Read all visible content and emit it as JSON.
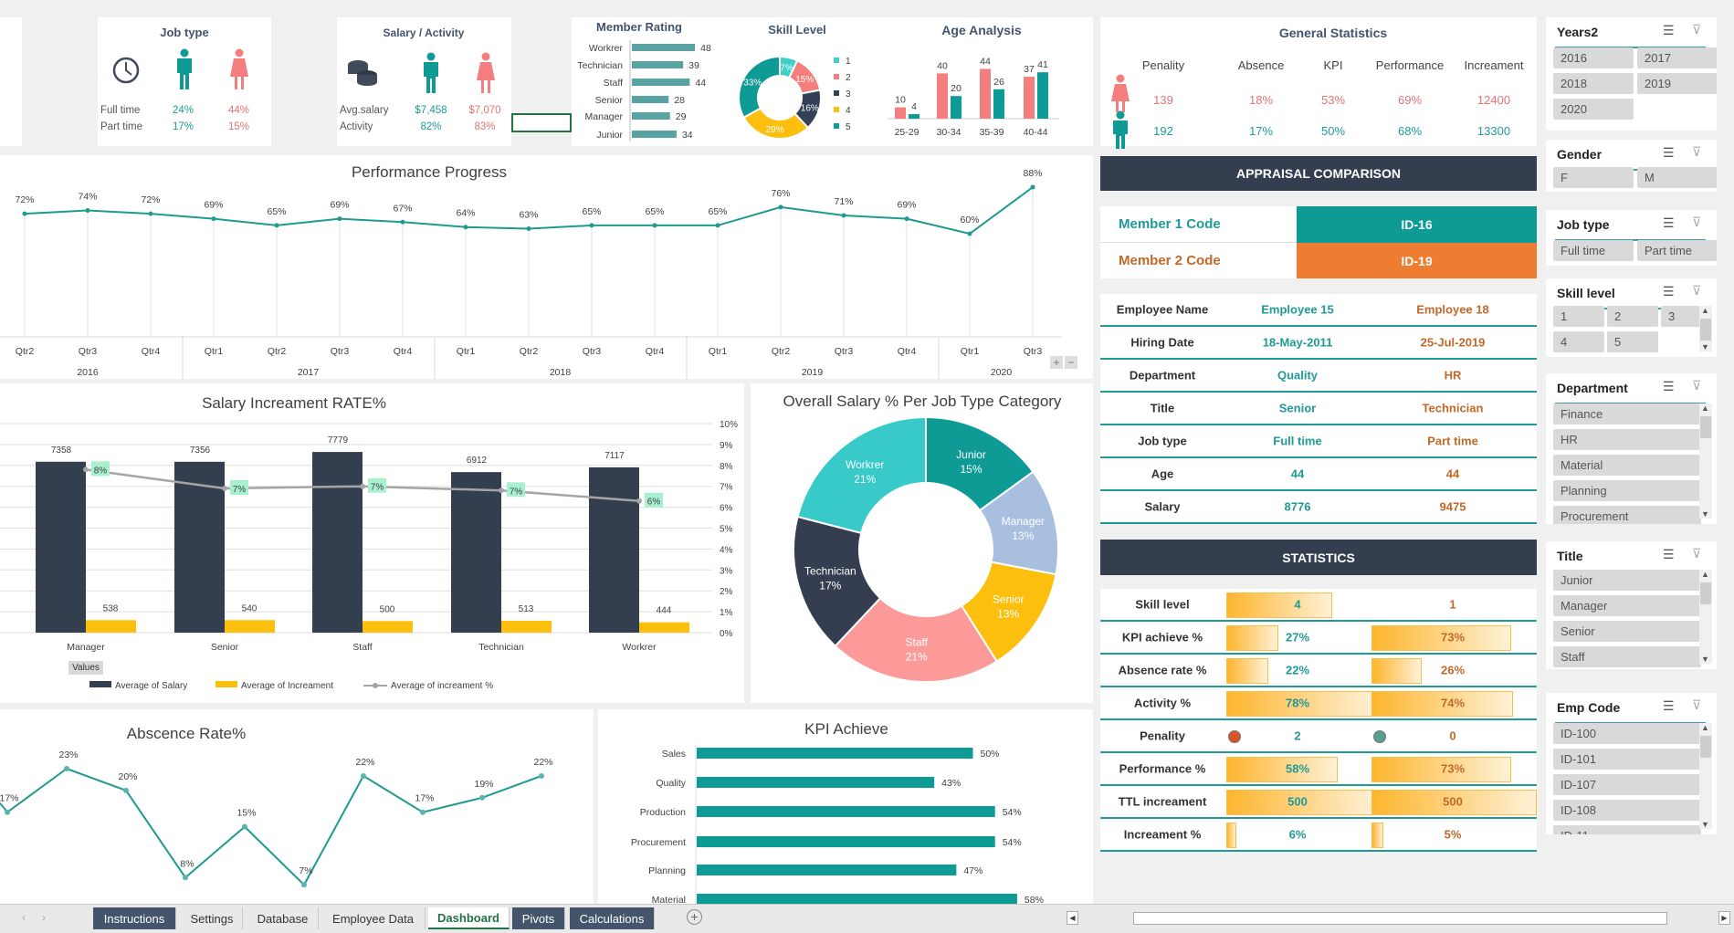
{
  "colors": {
    "teal": "#0e9a95",
    "navy": "#333f4f",
    "orange": "#ee7d31",
    "pink": "#f47d7d",
    "yellow": "#fcbf0e",
    "female_text": "#e57373",
    "male_text": "#1f9a96"
  },
  "job_type": {
    "title": "Job type",
    "icons": [
      "clock-icon",
      "male-icon",
      "female-icon"
    ],
    "rows": [
      {
        "label": "Full time",
        "male": "24%",
        "female": "44%"
      },
      {
        "label": "Part time",
        "male": "17%",
        "female": "15%"
      }
    ]
  },
  "salary_activity": {
    "title": "Salary / Activity",
    "icons": [
      "coins-icon",
      "male-icon",
      "female-icon"
    ],
    "rows": [
      {
        "label": "Avg.salary",
        "male": "$7,458",
        "female": "$7,070"
      },
      {
        "label": "Activity",
        "male": "82%",
        "female": "83%"
      }
    ]
  },
  "general_statistics": {
    "title": "General Statistics",
    "columns": [
      "Penality",
      "Absence",
      "KPI",
      "Performance",
      "Increament"
    ],
    "female": [
      "139",
      "18%",
      "53%",
      "69%",
      "12400"
    ],
    "male": [
      "192",
      "17%",
      "50%",
      "68%",
      "13300"
    ]
  },
  "appraisal": {
    "header": "APPRAISAL COMPARISON",
    "member1_label": "Member 1 Code",
    "member1_code": "ID-16",
    "member2_label": "Member 2 Code",
    "member2_code": "ID-19",
    "rows": [
      [
        "Employee Name",
        "Employee 15",
        "Employee 18"
      ],
      [
        "Hiring Date",
        "18-May-2011",
        "25-Jul-2019"
      ],
      [
        "Department",
        "Quality",
        "HR"
      ],
      [
        "Title",
        "Senior",
        "Technician"
      ],
      [
        "Job type",
        "Full time",
        "Part time"
      ],
      [
        "Age",
        "44",
        "44"
      ],
      [
        "Salary",
        "8776",
        "9475"
      ]
    ]
  },
  "statistics": {
    "header": "STATISTICS",
    "rows": [
      {
        "label": "Skill level",
        "v1": "4",
        "v2": "1",
        "fill1": 0.55,
        "fill2": 0
      },
      {
        "label": "KPI achieve %",
        "v1": "27%",
        "v2": "73%",
        "fill1": 0.27,
        "fill2": 0.73
      },
      {
        "label": "Absence rate %",
        "v1": "22%",
        "v2": "26%",
        "fill1": 0.22,
        "fill2": 0.26
      },
      {
        "label": "Activity %",
        "v1": "78%",
        "v2": "74%",
        "fill1": 0.78,
        "fill2": 0.74
      },
      {
        "label": "Penality",
        "v1": "2",
        "v2": "0",
        "dot1": "#d9532c",
        "dot2": "#5a9e8e"
      },
      {
        "label": "Performance %",
        "v1": "58%",
        "v2": "73%",
        "fill1": 0.58,
        "fill2": 0.73
      },
      {
        "label": "TTL increament",
        "v1": "500",
        "v2": "500",
        "fill1": 0.78,
        "fill2": 0.86
      },
      {
        "label": "Increament %",
        "v1": "6%",
        "v2": "5%",
        "fill1": 0.05,
        "fill2": 0.06
      }
    ]
  },
  "slicers": [
    {
      "title": "Years2",
      "cols": 2,
      "items": [
        "2016",
        "2017",
        "2018",
        "2019",
        "2020"
      ]
    },
    {
      "title": "Gender",
      "cols": 2,
      "items": [
        "F",
        "M"
      ]
    },
    {
      "title": "Job type",
      "cols": 2,
      "items": [
        "Full time",
        "Part time"
      ]
    },
    {
      "title": "Skill level",
      "cols": 3,
      "items": [
        "1",
        "2",
        "3",
        "4",
        "5"
      ],
      "scroll": true
    },
    {
      "title": "Department",
      "cols": 1,
      "items": [
        "Finance",
        "HR",
        "Material",
        "Planning",
        "Procurement"
      ],
      "scroll": true
    },
    {
      "title": "Title",
      "cols": 1,
      "items": [
        "Junior",
        "Manager",
        "Senior",
        "Staff"
      ],
      "scroll": true
    },
    {
      "title": "Emp Code",
      "cols": 1,
      "items": [
        "ID-100",
        "ID-101",
        "ID-107",
        "ID-108",
        "ID-11"
      ],
      "scroll": true
    }
  ],
  "tabs": [
    {
      "label": "Instructions",
      "style": "dark"
    },
    {
      "label": "Settings"
    },
    {
      "label": "Database"
    },
    {
      "label": "Employee Data"
    },
    {
      "label": "Dashboard",
      "style": "active"
    },
    {
      "label": "Pivots",
      "style": "dark"
    },
    {
      "label": "Calculations",
      "style": "dark"
    }
  ],
  "chart_data": [
    {
      "id": "member_rating",
      "type": "bar",
      "orientation": "horizontal",
      "title": "Member Rating",
      "categories": [
        "Workrer",
        "Technician",
        "Staff",
        "Senior",
        "Manager",
        "Junior"
      ],
      "values": [
        48,
        39,
        44,
        28,
        29,
        34
      ],
      "color": "#5aa3a3"
    },
    {
      "id": "skill_level",
      "type": "pie",
      "donut": true,
      "title": "Skill Level",
      "categories": [
        "1",
        "2",
        "3",
        "4",
        "5"
      ],
      "values": [
        7,
        15,
        16,
        29,
        33
      ],
      "colors": [
        "#3ecfc6",
        "#f47d7d",
        "#344055",
        "#fcbf0e",
        "#0e9a95"
      ],
      "legend": "right"
    },
    {
      "id": "age_analysis",
      "type": "bar",
      "title": "Age Analysis",
      "categories": [
        "25-29",
        "30-34",
        "35-39",
        "40-44"
      ],
      "series": [
        {
          "values": [
            10,
            40,
            44,
            37
          ],
          "color": "#f47d7d"
        },
        {
          "values": [
            4,
            20,
            26,
            41
          ],
          "color": "#0e9a95"
        }
      ]
    },
    {
      "id": "performance_progress",
      "type": "line",
      "title": "Performance Progress",
      "x": [
        [
          "2016",
          "Qtr2"
        ],
        [
          "2016",
          "Qtr3"
        ],
        [
          "2016",
          "Qtr4"
        ],
        [
          "2017",
          "Qtr1"
        ],
        [
          "2017",
          "Qtr2"
        ],
        [
          "2017",
          "Qtr3"
        ],
        [
          "2017",
          "Qtr4"
        ],
        [
          "2018",
          "Qtr1"
        ],
        [
          "2018",
          "Qtr2"
        ],
        [
          "2018",
          "Qtr3"
        ],
        [
          "2018",
          "Qtr4"
        ],
        [
          "2019",
          "Qtr1"
        ],
        [
          "2019",
          "Qtr2"
        ],
        [
          "2019",
          "Qtr3"
        ],
        [
          "2019",
          "Qtr4"
        ],
        [
          "2020",
          "Qtr1"
        ],
        [
          "2020",
          "Qtr3"
        ]
      ],
      "values": [
        72,
        74,
        72,
        69,
        65,
        69,
        67,
        64,
        63,
        65,
        65,
        65,
        76,
        71,
        69,
        60,
        88
      ],
      "unit": "%",
      "color": "#1f9a8f"
    },
    {
      "id": "salary_increament",
      "type": "bar",
      "title": "Salary Increament RATE%",
      "categories": [
        "Manager",
        "Senior",
        "Staff",
        "Technician",
        "Workrer"
      ],
      "ylim": [
        0,
        9000
      ],
      "y2lim": [
        0,
        10
      ],
      "y2ticks": [
        "0%",
        "1%",
        "2%",
        "3%",
        "4%",
        "5%",
        "6%",
        "7%",
        "8%",
        "9%",
        "10%"
      ],
      "series": [
        {
          "name": "Average of Salary",
          "type": "bar",
          "values": [
            7358,
            7356,
            7779,
            6912,
            7117
          ],
          "color": "#333f4f"
        },
        {
          "name": "Average of Increament",
          "type": "bar",
          "values": [
            538,
            540,
            500,
            513,
            444
          ],
          "color": "#fcbf0e"
        },
        {
          "name": "Average of increament %",
          "type": "line",
          "axis": "right",
          "values": [
            7.8,
            6.9,
            7.0,
            6.8,
            6.3
          ],
          "color": "#a5a5a5"
        }
      ],
      "filter_button": "Values",
      "legend": "bottom"
    },
    {
      "id": "overall_salary",
      "type": "pie",
      "donut": true,
      "title": "Overall Salary % Per Job Type Category",
      "categories": [
        "Junior",
        "Manager",
        "Senior",
        "Staff",
        "Technician",
        "Workrer"
      ],
      "values": [
        15,
        13,
        13,
        21,
        17,
        21
      ],
      "colors": [
        "#0e9a95",
        "#a8bfe0",
        "#fcbf0e",
        "#fc9a9a",
        "#343e50",
        "#38c9c9"
      ]
    },
    {
      "id": "absence_rate",
      "type": "line",
      "title": "Abscence Rate%",
      "values": [
        17,
        23,
        20,
        8,
        15,
        7,
        22,
        17,
        19,
        22
      ],
      "unit": "%",
      "color": "#1f9a8f"
    },
    {
      "id": "kpi_achieve",
      "type": "bar",
      "orientation": "horizontal",
      "title": "KPI Achieve",
      "categories": [
        "Sales",
        "Quality",
        "Production",
        "Procurement",
        "Planning",
        "Material"
      ],
      "values": [
        50,
        43,
        54,
        54,
        47,
        58
      ],
      "unit": "%",
      "color": "#0e9a95"
    }
  ]
}
